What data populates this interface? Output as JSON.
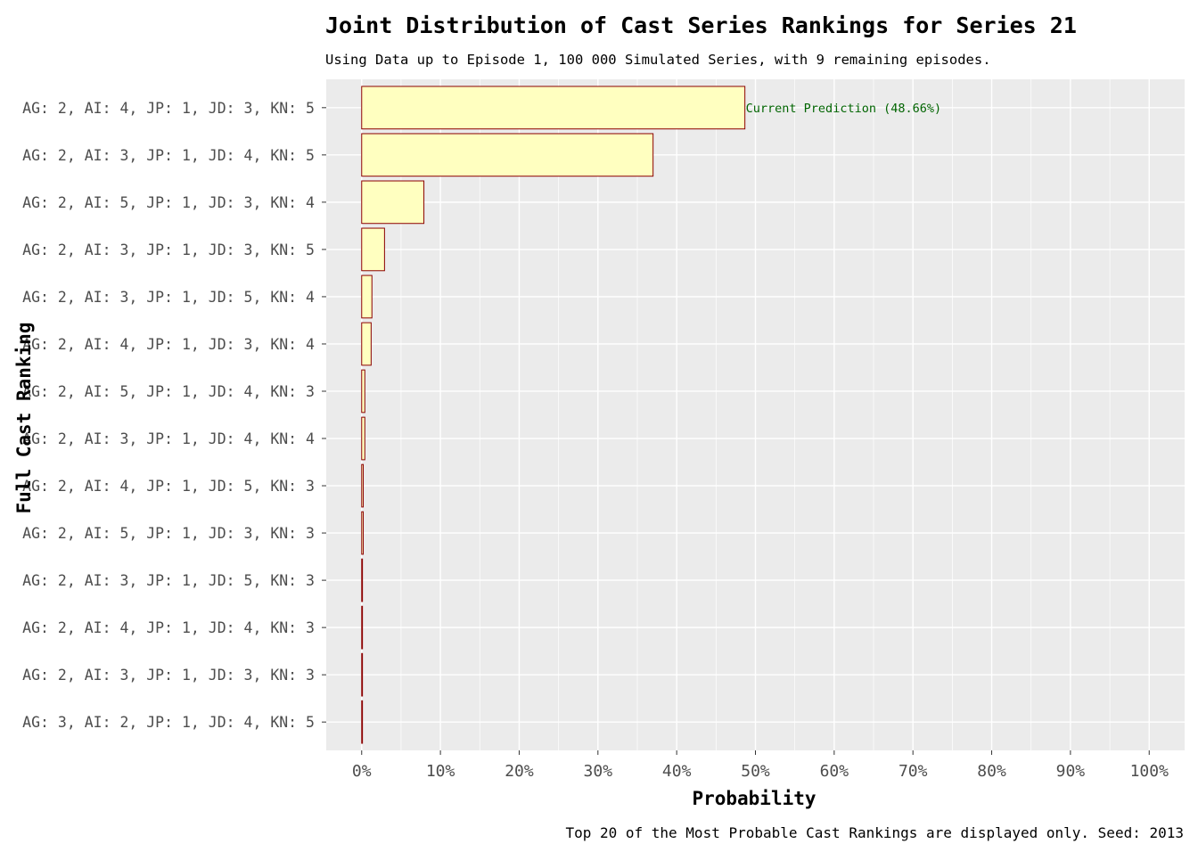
{
  "chart_data": {
    "type": "bar",
    "orientation": "horizontal",
    "title": "Joint Distribution of Cast Series Rankings for Series 21",
    "subtitle": "Using Data up to Episode 1, 100 000 Simulated Series, with 9 remaining episodes.",
    "caption": "Top 20 of the Most Probable Cast Rankings are displayed only. Seed: 2013",
    "xlabel": "Probability",
    "ylabel": "Full Cast Ranking",
    "xlim": [
      0,
      1
    ],
    "x_ticks": [
      0,
      0.1,
      0.2,
      0.3,
      0.4,
      0.5,
      0.6,
      0.7,
      0.8,
      0.9,
      1.0
    ],
    "x_tick_labels": [
      "0%",
      "10%",
      "20%",
      "30%",
      "40%",
      "50%",
      "60%",
      "70%",
      "80%",
      "90%",
      "100%"
    ],
    "categories": [
      "AG: 2, AI: 4, JP: 1, JD: 3, KN: 5",
      "AG: 2, AI: 3, JP: 1, JD: 4, KN: 5",
      "AG: 2, AI: 5, JP: 1, JD: 3, KN: 4",
      "AG: 2, AI: 3, JP: 1, JD: 3, KN: 5",
      "AG: 2, AI: 3, JP: 1, JD: 5, KN: 4",
      "AG: 2, AI: 4, JP: 1, JD: 3, KN: 4",
      "AG: 2, AI: 5, JP: 1, JD: 4, KN: 3",
      "AG: 2, AI: 3, JP: 1, JD: 4, KN: 4",
      "AG: 2, AI: 4, JP: 1, JD: 5, KN: 3",
      "AG: 2, AI: 5, JP: 1, JD: 3, KN: 3",
      "AG: 2, AI: 3, JP: 1, JD: 5, KN: 3",
      "AG: 2, AI: 4, JP: 1, JD: 4, KN: 3",
      "AG: 2, AI: 3, JP: 1, JD: 3, KN: 3",
      "AG: 3, AI: 2, JP: 1, JD: 4, KN: 5"
    ],
    "values": [
      0.4866,
      0.37,
      0.079,
      0.029,
      0.013,
      0.012,
      0.004,
      0.004,
      0.002,
      0.002,
      0.001,
      0.001,
      0.001,
      0.001
    ],
    "annotation": {
      "category_index": 0,
      "text": "Current Prediction (48.66%)"
    },
    "grid": true,
    "legend": "none",
    "colors": {
      "panel_background": "#ebebeb",
      "gridline": "#ffffff",
      "bar_fill": "#ffffc0",
      "bar_stroke": "#8b0000",
      "annotation": "#006400",
      "tick_text": "#4d4d4d",
      "title_text": "#000000"
    }
  }
}
